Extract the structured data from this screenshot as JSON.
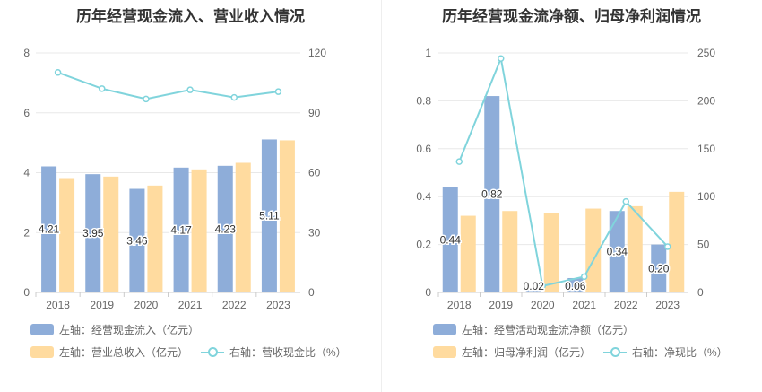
{
  "colors": {
    "bar_primary": "#8eadd9",
    "bar_secondary": "#ffdb9f",
    "line": "#80d4dc",
    "grid": "#e8e8e8",
    "axis_text": "#666666",
    "label_text": "#333333"
  },
  "chart_data": [
    {
      "type": "bar",
      "title": "历年经营现金流入、营业收入情况",
      "categories": [
        "2018",
        "2019",
        "2020",
        "2021",
        "2022",
        "2023"
      ],
      "y_left": {
        "min": 0,
        "max": 8,
        "ticks": [
          "0",
          "2",
          "4",
          "6",
          "8"
        ]
      },
      "y_right": {
        "min": 0,
        "max": 120,
        "ticks": [
          "0",
          "30",
          "60",
          "90",
          "120"
        ]
      },
      "series": [
        {
          "name": "左轴：经营现金流入（亿元）",
          "type": "bar",
          "axis": "left",
          "values": [
            4.21,
            3.95,
            3.46,
            4.17,
            4.23,
            5.11
          ],
          "labels": [
            "4.21",
            "3.95",
            "3.46",
            "4.17",
            "4.23",
            "5.11"
          ]
        },
        {
          "name": "左轴：营业总收入（亿元）",
          "type": "bar",
          "axis": "left",
          "values": [
            3.82,
            3.87,
            3.57,
            4.11,
            4.33,
            5.08
          ]
        },
        {
          "name": "右轴：营收现金比（%）",
          "type": "line",
          "axis": "right",
          "values": [
            110.2,
            102.1,
            96.9,
            101.5,
            97.7,
            100.6
          ]
        }
      ],
      "legend_position": "bottom"
    },
    {
      "type": "bar",
      "title": "历年经营现金流净额、归母净利润情况",
      "categories": [
        "2018",
        "2019",
        "2020",
        "2021",
        "2022",
        "2023"
      ],
      "y_left": {
        "min": 0,
        "max": 1,
        "ticks": [
          "0",
          "0.2",
          "0.4",
          "0.6",
          "0.8",
          "1"
        ]
      },
      "y_right": {
        "min": 0,
        "max": 250,
        "ticks": [
          "0",
          "50",
          "100",
          "150",
          "200",
          "250"
        ]
      },
      "series": [
        {
          "name": "左轴：经营活动现金流净额（亿元）",
          "type": "bar",
          "axis": "left",
          "values": [
            0.44,
            0.82,
            0.02,
            0.06,
            0.34,
            0.2
          ],
          "labels": [
            "0.44",
            "0.82",
            "0.02",
            "0.06",
            "0.34",
            "0.20"
          ]
        },
        {
          "name": "左轴：归母净利润（亿元）",
          "type": "bar",
          "axis": "left",
          "values": [
            0.32,
            0.34,
            0.33,
            0.35,
            0.36,
            0.42
          ]
        },
        {
          "name": "右轴：净现比（%）",
          "type": "line",
          "axis": "right",
          "values": [
            136.6,
            244.2,
            6.8,
            16.5,
            94.9,
            47.8
          ]
        }
      ],
      "legend_position": "bottom"
    }
  ]
}
